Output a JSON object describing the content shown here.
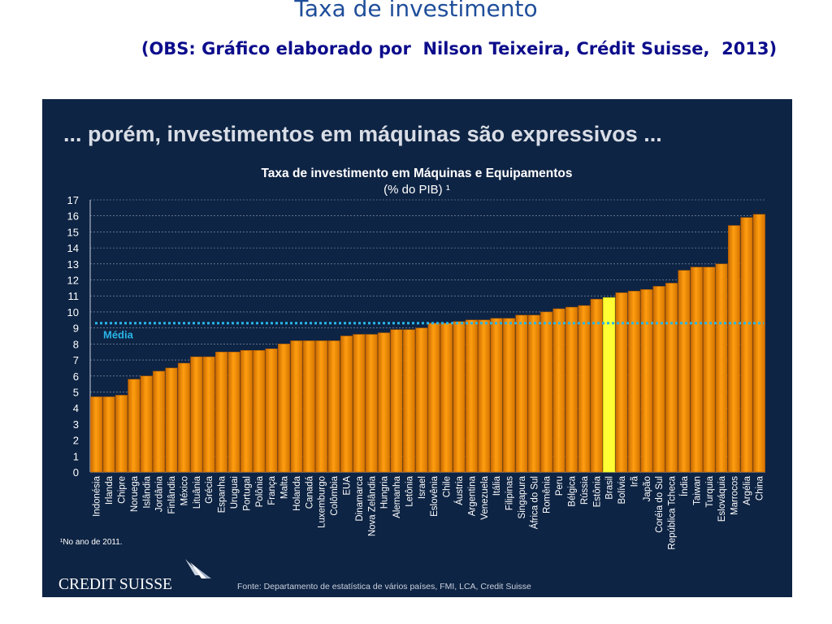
{
  "slide": {
    "title": "Taxa de investimento",
    "subtitle": "(OBS: Gráfico elaborado por  Nilson Teixeira, Crédit Suisse,  2013)"
  },
  "panel": {
    "headline": "... porém, investimentos em máquinas são expressivos ...",
    "footnote": "¹No ano de 2011.",
    "logo_text": "CREDIT SUISSE",
    "source": "Fonte: Departamento de estatística de vários países, FMI, LCA, Credit Suisse"
  },
  "colors": {
    "panel_bg": "#0e2444",
    "bar": "#f29400",
    "bar_highlight": "#ffff33",
    "average_line": "#29b6e8",
    "grid": "#c8d0dc",
    "text": "#ffffff"
  },
  "chart_data": {
    "type": "bar",
    "title": "Taxa de investimento em Máquinas e Equipamentos",
    "subtitle": "(% do PIB) ¹",
    "xlabel": "",
    "ylabel": "",
    "ylim": [
      0,
      17
    ],
    "yticks": [
      0,
      1,
      2,
      3,
      4,
      5,
      6,
      7,
      8,
      9,
      10,
      11,
      12,
      13,
      14,
      15,
      16,
      17
    ],
    "grid": true,
    "highlight": "Brasil",
    "average": {
      "label": "Média",
      "value": 9.3
    },
    "categories": [
      "Indonésia",
      "Irlanda",
      "Chipre",
      "Noruega",
      "Islândia",
      "Jordânia",
      "Finlândia",
      "México",
      "Lituânia",
      "Grécia",
      "Espanha",
      "Uruguai",
      "Portugal",
      "Polônia",
      "França",
      "Malta",
      "Holanda",
      "Canadá",
      "Luxemburgo",
      "Colômbia",
      "EUA",
      "Dinamarca",
      "Nova Zelândia",
      "Hungria",
      "Alemanha",
      "Letônia",
      "Israel",
      "Eslovênia",
      "Chile",
      "Áustria",
      "Argentina",
      "Venezuela",
      "Itália",
      "Filipinas",
      "Singapura",
      "África do Sul",
      "Romênia",
      "Peru",
      "Bélgica",
      "Rússia",
      "Estônia",
      "Brasil",
      "Bolívia",
      "Irã",
      "Japão",
      "Coréia do Sul",
      "República Tcheca",
      "Índia",
      "Taiwan",
      "Turquia",
      "Eslováquia",
      "Marrocos",
      "Argélia",
      "China"
    ],
    "values": [
      4.7,
      4.7,
      4.8,
      5.8,
      6.0,
      6.3,
      6.5,
      6.8,
      7.2,
      7.2,
      7.5,
      7.5,
      7.6,
      7.6,
      7.7,
      8.0,
      8.2,
      8.2,
      8.2,
      8.2,
      8.5,
      8.6,
      8.6,
      8.7,
      8.9,
      8.9,
      9.0,
      9.3,
      9.3,
      9.4,
      9.5,
      9.5,
      9.6,
      9.6,
      9.8,
      9.8,
      10.0,
      10.2,
      10.3,
      10.4,
      10.8,
      10.9,
      11.2,
      11.3,
      11.4,
      11.6,
      11.8,
      12.6,
      12.8,
      12.8,
      13.0,
      15.4,
      15.9,
      16.1
    ]
  }
}
